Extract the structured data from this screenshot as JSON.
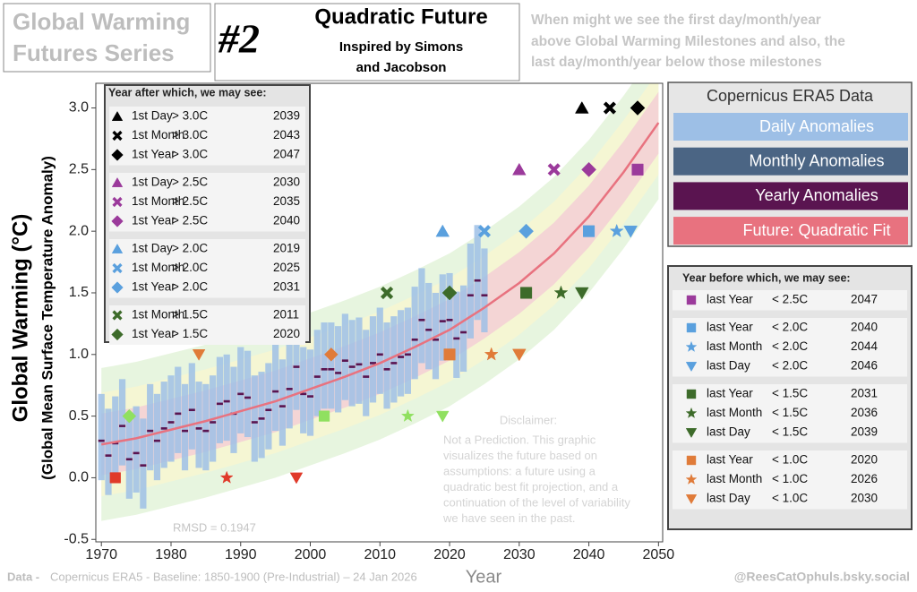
{
  "chart_data": {
    "type": "line",
    "series_title": [
      "Global  Warming",
      "Futures Series"
    ],
    "number": "#2",
    "title": "Quadratic Future",
    "subtitle": [
      "Inspired by Simons",
      "and Jacobson"
    ],
    "note": [
      "When might we see the first day/month/year",
      "above Global Warming Milestones and also, the",
      "last day/month/year below those milestones"
    ],
    "ylabel": "Global Warming (°C)",
    "ylabel2": "(Global Mean Surface Temperature Anomaly)",
    "xlabel": "Year",
    "xlim": [
      1969.2,
      2050.6
    ],
    "ylim": [
      -0.52,
      3.2
    ],
    "xticks": [
      1970,
      1980,
      1990,
      2000,
      2010,
      2020,
      2030,
      2040,
      2050
    ],
    "yticks": [
      -0.5,
      {
        "value": 0,
        "label": "0.0"
      },
      0.5,
      {
        "value": 1,
        "label": "1.0"
      },
      1.5,
      {
        "value": 2,
        "label": "2.0"
      },
      2.5,
      {
        "value": 3,
        "label": "3.0"
      }
    ],
    "legend_title": "Copernicus ERA5 Data",
    "x": [
      1970,
      1971,
      1972,
      1973,
      1974,
      1975,
      1976,
      1977,
      1978,
      1979,
      1980,
      1981,
      1982,
      1983,
      1984,
      1985,
      1986,
      1987,
      1988,
      1989,
      1990,
      1991,
      1992,
      1993,
      1994,
      1995,
      1996,
      1997,
      1998,
      1999,
      2000,
      2001,
      2002,
      2003,
      2004,
      2005,
      2006,
      2007,
      2008,
      2009,
      2010,
      2011,
      2012,
      2013,
      2014,
      2015,
      2016,
      2017,
      2018,
      2019,
      2020,
      2021,
      2022,
      2023,
      2024,
      2025
    ],
    "series": [
      {
        "name": "Daily Anomalies",
        "color": "#9dbfe6",
        "lows": [
          -0.02,
          -0.14,
          -0.04,
          0.1,
          -0.17,
          -0.12,
          -0.25,
          0.06,
          -0.02,
          0.08,
          0.13,
          0.2,
          0.06,
          0.23,
          0.08,
          0.06,
          0.13,
          0.28,
          0.3,
          0.2,
          0.36,
          0.33,
          0.13,
          0.16,
          0.23,
          0.38,
          0.26,
          0.4,
          0.55,
          0.36,
          0.34,
          0.5,
          0.56,
          0.56,
          0.53,
          0.63,
          0.58,
          0.6,
          0.5,
          0.61,
          0.68,
          0.56,
          0.61,
          0.66,
          0.68,
          0.8,
          0.93,
          0.88,
          0.8,
          0.95,
          0.96,
          0.81,
          0.86,
          1.13,
          1.28,
          1.18
        ],
        "highs": [
          0.68,
          0.56,
          0.66,
          0.8,
          0.53,
          0.58,
          0.48,
          0.76,
          0.68,
          0.78,
          0.83,
          0.9,
          0.76,
          0.93,
          0.78,
          0.76,
          0.83,
          0.98,
          1.0,
          0.9,
          1.06,
          1.03,
          0.83,
          0.86,
          0.93,
          1.08,
          0.96,
          1.1,
          1.3,
          1.06,
          1.04,
          1.2,
          1.26,
          1.26,
          1.23,
          1.33,
          1.28,
          1.3,
          1.2,
          1.31,
          1.38,
          1.26,
          1.31,
          1.36,
          1.38,
          1.55,
          1.7,
          1.58,
          1.5,
          1.65,
          1.66,
          1.51,
          1.56,
          1.9,
          2.05,
          1.86
        ]
      },
      {
        "name": "Monthly Anomalies",
        "color": "#4b6584"
      },
      {
        "name": "Yearly Anomalies",
        "color": "#5a1450",
        "values": [
          0.3,
          0.18,
          0.28,
          0.42,
          0.15,
          0.2,
          0.1,
          0.38,
          0.3,
          0.4,
          0.45,
          0.52,
          0.38,
          0.55,
          0.4,
          0.38,
          0.45,
          0.6,
          0.62,
          0.52,
          0.68,
          0.65,
          0.45,
          0.48,
          0.55,
          0.7,
          0.58,
          0.72,
          0.9,
          0.68,
          0.66,
          0.82,
          0.88,
          0.88,
          0.85,
          0.95,
          0.9,
          0.92,
          0.82,
          0.93,
          1.0,
          0.88,
          0.93,
          0.98,
          1.0,
          1.12,
          1.28,
          1.2,
          1.12,
          1.27,
          1.28,
          1.13,
          1.18,
          1.48,
          1.6,
          1.48
        ]
      },
      {
        "name": "Future: Quadratic Fit",
        "color": "#e8727f",
        "x": [
          1970,
          1975,
          1980,
          1985,
          1990,
          1995,
          2000,
          2005,
          2010,
          2015,
          2020,
          2025,
          2030,
          2035,
          2040,
          2045,
          2050
        ],
        "values": [
          0.27,
          0.32,
          0.39,
          0.46,
          0.54,
          0.62,
          0.72,
          0.82,
          0.93,
          1.06,
          1.2,
          1.38,
          1.58,
          1.82,
          2.12,
          2.48,
          2.88
        ]
      }
    ],
    "bands": [
      {
        "color": "#dff2d4",
        "upper": [
          0.89,
          0.94,
          1.01,
          1.08,
          1.16,
          1.24,
          1.34,
          1.44,
          1.55,
          1.68,
          1.82,
          2.0,
          2.2,
          2.44,
          2.74,
          3.1,
          3.5
        ],
        "lower": [
          -0.35,
          -0.3,
          -0.23,
          -0.16,
          -0.08,
          0.0,
          0.1,
          0.2,
          0.31,
          0.44,
          0.58,
          0.76,
          0.96,
          1.2,
          1.5,
          1.86,
          2.26
        ]
      },
      {
        "color": "#faf6cf",
        "upper": [
          0.69,
          0.74,
          0.81,
          0.88,
          0.96,
          1.04,
          1.14,
          1.24,
          1.35,
          1.48,
          1.62,
          1.8,
          2.0,
          2.24,
          2.54,
          2.9,
          3.3
        ],
        "lower": [
          -0.15,
          -0.1,
          -0.03,
          0.04,
          0.12,
          0.2,
          0.3,
          0.4,
          0.51,
          0.64,
          0.78,
          0.96,
          1.16,
          1.4,
          1.7,
          2.06,
          2.46
        ]
      },
      {
        "color": "#f3c9d6",
        "upper": [
          0.52,
          0.57,
          0.64,
          0.71,
          0.79,
          0.87,
          0.97,
          1.07,
          1.18,
          1.31,
          1.45,
          1.63,
          1.83,
          2.07,
          2.37,
          2.73,
          3.13
        ],
        "lower": [
          0.02,
          0.07,
          0.14,
          0.21,
          0.29,
          0.37,
          0.47,
          0.57,
          0.68,
          0.81,
          0.95,
          1.13,
          1.33,
          1.57,
          1.87,
          2.23,
          2.63
        ]
      }
    ],
    "after_table": {
      "title": "Year after which, we may see:",
      "groups": [
        [
          {
            "label": "1st Day",
            "threshold": "> 3.0C",
            "year": 2039,
            "level": 3,
            "shape": "triangle",
            "color": "#000000"
          },
          {
            "label": "1st Month",
            "threshold": "> 3.0C",
            "year": 2043,
            "level": 3,
            "shape": "cross",
            "color": "#000000"
          },
          {
            "label": "1st Year",
            "threshold": "> 3.0C",
            "year": 2047,
            "level": 3,
            "shape": "diamond",
            "color": "#000000"
          }
        ],
        [
          {
            "label": "1st Day",
            "threshold": "> 2.5C",
            "year": 2030,
            "level": 2.5,
            "shape": "triangle",
            "color": "#9b3a9b"
          },
          {
            "label": "1st Month",
            "threshold": "> 2.5C",
            "year": 2035,
            "level": 2.5,
            "shape": "cross",
            "color": "#9b3a9b"
          },
          {
            "label": "1st Year",
            "threshold": "> 2.5C",
            "year": 2040,
            "level": 2.5,
            "shape": "diamond",
            "color": "#9b3a9b"
          }
        ],
        [
          {
            "label": "1st Day",
            "threshold": "> 2.0C",
            "year": 2019,
            "level": 2,
            "shape": "triangle",
            "color": "#5aa0de"
          },
          {
            "label": "1st Month",
            "threshold": "> 2.0C",
            "year": 2025,
            "level": 2,
            "shape": "cross",
            "color": "#5aa0de"
          },
          {
            "label": "1st Year",
            "threshold": "> 2.0C",
            "year": 2031,
            "level": 2,
            "shape": "diamond",
            "color": "#5aa0de"
          }
        ],
        [
          {
            "label": "1st Month",
            "threshold": "> 1.5C",
            "year": 2011,
            "level": 1.5,
            "shape": "cross",
            "color": "#3d6b2a"
          },
          {
            "label": "1st Year",
            "threshold": "> 1.5C",
            "year": 2020,
            "level": 1.5,
            "shape": "diamond",
            "color": "#3d6b2a"
          }
        ]
      ]
    },
    "before_table": {
      "title": "Year before which, we may  see:",
      "groups": [
        [
          {
            "label": "last Year",
            "threshold": "< 2.5C",
            "year": 2047,
            "level": 2.5,
            "shape": "square",
            "color": "#9b3a9b"
          }
        ],
        [
          {
            "label": "last Year",
            "threshold": "< 2.0C",
            "year": 2040,
            "level": 2,
            "shape": "square",
            "color": "#5aa0de"
          },
          {
            "label": "last Month",
            "threshold": "< 2.0C",
            "year": 2044,
            "level": 2,
            "shape": "star",
            "color": "#5aa0de"
          },
          {
            "label": "last Day",
            "threshold": "< 2.0C",
            "year": 2046,
            "level": 2,
            "shape": "tdown",
            "color": "#5aa0de"
          }
        ],
        [
          {
            "label": "last Year",
            "threshold": "< 1.5C",
            "year": 2031,
            "level": 1.5,
            "shape": "square",
            "color": "#3d6b2a"
          },
          {
            "label": "last Month",
            "threshold": "< 1.5C",
            "year": 2036,
            "level": 1.5,
            "shape": "star",
            "color": "#3d6b2a"
          },
          {
            "label": "last Day",
            "threshold": "< 1.5C",
            "year": 2039,
            "level": 1.5,
            "shape": "tdown",
            "color": "#3d6b2a"
          }
        ],
        [
          {
            "label": "last Year",
            "threshold": "< 1.0C",
            "year": 2020,
            "level": 1,
            "shape": "square",
            "color": "#e07b39"
          },
          {
            "label": "last Month",
            "threshold": "< 1.0C",
            "year": 2026,
            "level": 1,
            "shape": "star",
            "color": "#e07b39"
          },
          {
            "label": "last Day",
            "threshold": "< 1.0C",
            "year": 2030,
            "level": 1,
            "shape": "tdown",
            "color": "#e07b39"
          }
        ]
      ]
    },
    "extra_markers": [
      {
        "year": 1984,
        "level": 1,
        "shape": "tdown",
        "color": "#e07b39"
      },
      {
        "year": 2003,
        "level": 1,
        "shape": "diamond",
        "color": "#e07b39"
      },
      {
        "year": 1974,
        "level": 0.5,
        "shape": "diamond",
        "color": "#90e060"
      },
      {
        "year": 2002,
        "level": 0.5,
        "shape": "square",
        "color": "#90e060"
      },
      {
        "year": 2014,
        "level": 0.5,
        "shape": "star",
        "color": "#90e060"
      },
      {
        "year": 2019,
        "level": 0.5,
        "shape": "tdown",
        "color": "#90e060"
      },
      {
        "year": 1972,
        "level": 0,
        "shape": "square",
        "color": "#e03a2a"
      },
      {
        "year": 1988,
        "level": 0,
        "shape": "star",
        "color": "#e03a2a"
      },
      {
        "year": 1998,
        "level": 0,
        "shape": "tdown",
        "color": "#e03a2a"
      }
    ],
    "disclaimer_title": "Disclaimer:",
    "disclaimer": [
      "Not a Prediction. This graphic",
      "visualizes the future based on",
      "assumptions: a future using a",
      "quadratic best fit projection, and a",
      "continuation of the level of variability",
      "we have seen in the past."
    ],
    "annotation": "RMSD = 0.1947",
    "source_label": "Data -",
    "source": "Copernicus ERA5 - Baseline: 1850-1900 (Pre-Industrial) – 24 Jan 2026",
    "credit": "@ReesCatOphuls.bsky.social"
  }
}
